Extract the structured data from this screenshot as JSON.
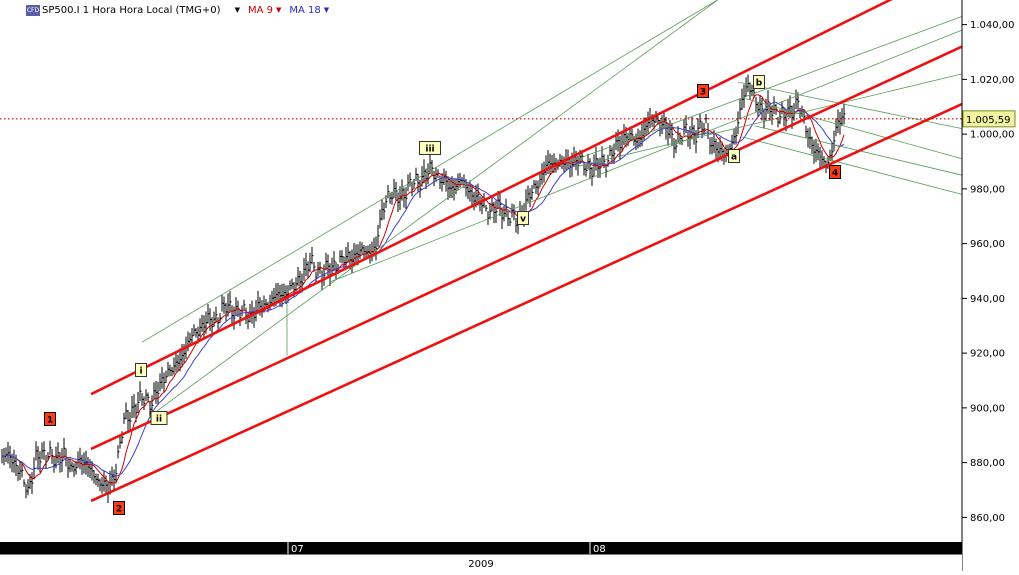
{
  "header": {
    "logo": "CFD",
    "symbol": "SP500.I 1 Hora Hora Local (TMG+0)",
    "ma1_label": "MA 9",
    "ma2_label": "MA 18"
  },
  "colors": {
    "price": "#000000",
    "ma1": "#cc0000",
    "ma2": "#4040cc",
    "channel": "#ee1111",
    "fan": "#5a9a5a",
    "last_price_line": "#cc0000",
    "last_price_badge": "#f2f2a0"
  },
  "chart_data": {
    "type": "line",
    "x_tick_labels": [
      "07",
      "08"
    ],
    "year_label": "2009",
    "y_tick_labels": [
      "860,00",
      "880,00",
      "900,00",
      "920,00",
      "940,00",
      "960,00",
      "980,00",
      "1.000,00",
      "1.020,00",
      "1.040,00"
    ],
    "ylim": [
      851,
      1049
    ],
    "last_price": 1005.59,
    "last_price_label": "1.005,59",
    "series": [
      {
        "name": "MA 9"
      },
      {
        "name": "MA 18"
      }
    ],
    "wave_labels": [
      {
        "text": "1",
        "style": "major"
      },
      {
        "text": "2",
        "style": "major"
      },
      {
        "text": "3",
        "style": "major"
      },
      {
        "text": "4",
        "style": "major"
      },
      {
        "text": "i",
        "style": "minor"
      },
      {
        "text": "ii",
        "style": "minor"
      },
      {
        "text": "iii",
        "style": "minor"
      },
      {
        "text": "v",
        "style": "minor"
      },
      {
        "text": "a",
        "style": "minor"
      },
      {
        "text": "b",
        "style": "minor"
      }
    ]
  }
}
